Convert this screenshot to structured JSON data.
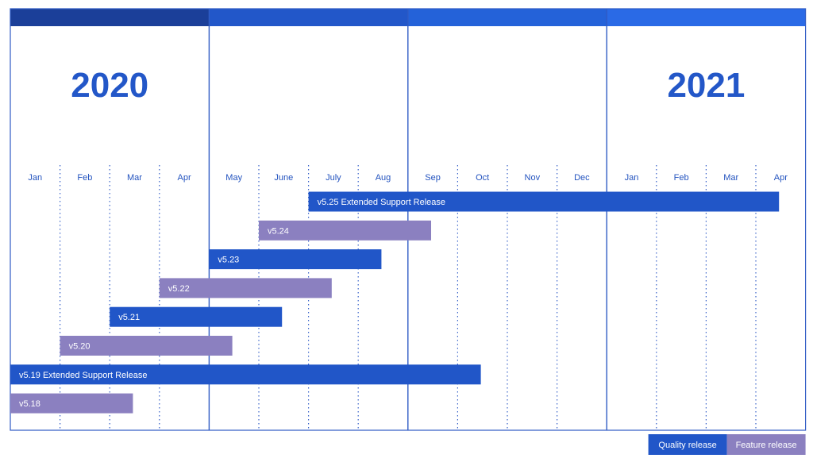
{
  "chart_data": {
    "type": "gantt",
    "title": "",
    "xlabel": "",
    "ylabel": "",
    "years": [
      {
        "label": "2020",
        "start": "2020-01",
        "end": "2020-12"
      },
      {
        "label": "2021",
        "start": "2021-01",
        "end": "2021-04"
      }
    ],
    "quarters": [
      {
        "start": "2020-01",
        "color": "#1b3f99"
      },
      {
        "start": "2020-05",
        "color": "#2257c9"
      },
      {
        "start": "2020-09",
        "color": "#2462d9"
      },
      {
        "start": "2021-01",
        "color": "#2a6ae6"
      }
    ],
    "months": [
      "Jan",
      "Feb",
      "Mar",
      "Apr",
      "May",
      "June",
      "July",
      "Aug",
      "Sep",
      "Oct",
      "Nov",
      "Dec",
      "Jan",
      "Feb",
      "Mar",
      "Apr"
    ],
    "series_types": [
      {
        "key": "quality",
        "name": "Quality release",
        "color": "#2156c8"
      },
      {
        "key": "feature",
        "name": "Feature release",
        "color": "#8b80c0"
      }
    ],
    "releases": [
      {
        "label": "v5.25 Extended Support Release",
        "type": "quality",
        "start": "2020-07-01",
        "end": "2021-04-15"
      },
      {
        "label": "v5.24",
        "type": "feature",
        "start": "2020-06-01",
        "end": "2020-09-15"
      },
      {
        "label": "v5.23",
        "type": "quality",
        "start": "2020-05-01",
        "end": "2020-08-15"
      },
      {
        "label": "v5.22",
        "type": "feature",
        "start": "2020-04-01",
        "end": "2020-07-15"
      },
      {
        "label": "v5.21",
        "type": "quality",
        "start": "2020-03-01",
        "end": "2020-06-15"
      },
      {
        "label": "v5.20",
        "type": "feature",
        "start": "2020-02-01",
        "end": "2020-05-15"
      },
      {
        "label": "v5.19 Extended Support Release",
        "type": "quality",
        "start": "2020-01-01",
        "end": "2020-10-15"
      },
      {
        "label": "v5.18",
        "type": "feature",
        "start": "2020-01-01",
        "end": "2020-03-15"
      }
    ],
    "legend_position": "bottom-right"
  },
  "colors": {
    "axis_line": "#2f5bc4",
    "grid_dotted": "#3a63c9",
    "month_label": "#2353bf",
    "year_label": "#2357c8",
    "bar_text": "#ffffff"
  }
}
